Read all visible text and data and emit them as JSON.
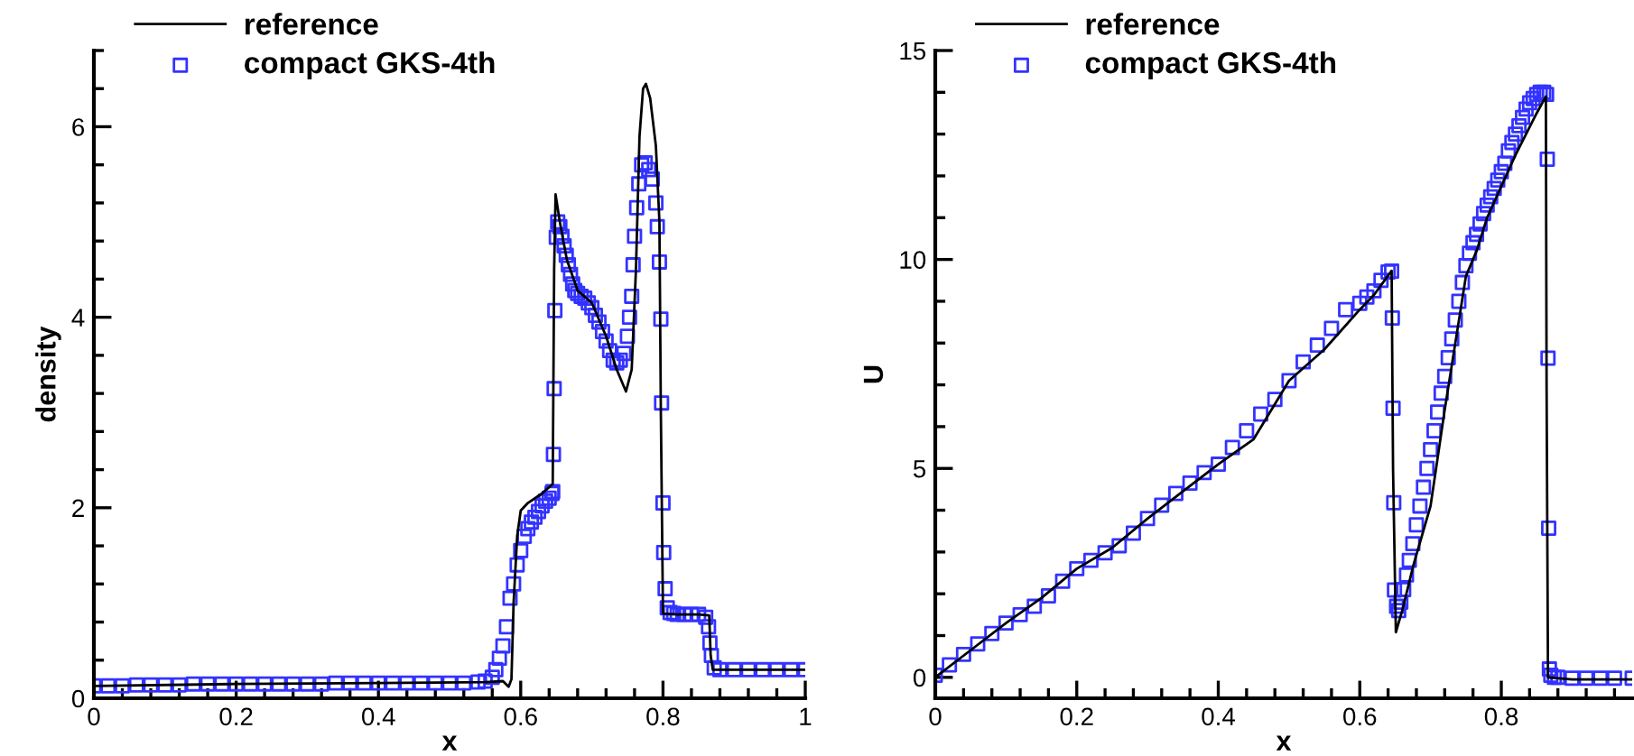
{
  "chart_data": [
    {
      "type": "line",
      "xlabel": "x",
      "ylabel": "density",
      "xlim": [
        0,
        1
      ],
      "ylim": [
        0,
        6.8
      ],
      "xticks": [
        0,
        0.2,
        0.4,
        0.6,
        0.8,
        1
      ],
      "yticks": [
        0,
        2,
        4,
        6
      ],
      "grid": false,
      "legend": "top left",
      "series": [
        {
          "name": "reference",
          "color": "#000000",
          "marker": "none",
          "line_style": "solid",
          "x": [
            0,
            0.2,
            0.4,
            0.55,
            0.575,
            0.583,
            0.587,
            0.59,
            0.595,
            0.6,
            0.61,
            0.63,
            0.645,
            0.647,
            0.649,
            0.655,
            0.665,
            0.68,
            0.7,
            0.72,
            0.735,
            0.748,
            0.756,
            0.762,
            0.767,
            0.772,
            0.776,
            0.782,
            0.79,
            0.795,
            0.797,
            0.8,
            0.82,
            0.85,
            0.865,
            0.867,
            0.87,
            0.9,
            1
          ],
          "values": [
            0.13,
            0.15,
            0.16,
            0.17,
            0.18,
            0.12,
            0.2,
            1.0,
            1.7,
            1.97,
            2.05,
            2.15,
            2.25,
            4.5,
            5.29,
            5.0,
            4.6,
            4.28,
            4.15,
            3.8,
            3.45,
            3.22,
            3.45,
            4.5,
            5.9,
            6.4,
            6.45,
            6.3,
            5.8,
            5.0,
            3.0,
            0.89,
            0.88,
            0.88,
            0.87,
            0.45,
            0.3,
            0.3,
            0.3
          ]
        },
        {
          "name": "compact GKS-4th",
          "type": "scatter",
          "color": "#3333ff",
          "marker": "square",
          "x": [
            0,
            0.02,
            0.04,
            0.06,
            0.08,
            0.1,
            0.12,
            0.14,
            0.16,
            0.18,
            0.2,
            0.22,
            0.24,
            0.26,
            0.28,
            0.3,
            0.32,
            0.34,
            0.36,
            0.38,
            0.4,
            0.42,
            0.44,
            0.46,
            0.48,
            0.5,
            0.52,
            0.54,
            0.55,
            0.56,
            0.565,
            0.57,
            0.575,
            0.58,
            0.585,
            0.59,
            0.595,
            0.6,
            0.605,
            0.61,
            0.615,
            0.62,
            0.625,
            0.63,
            0.635,
            0.64,
            0.644,
            0.645,
            0.646,
            0.647,
            0.648,
            0.65,
            0.652,
            0.655,
            0.658,
            0.661,
            0.664,
            0.667,
            0.67,
            0.673,
            0.676,
            0.68,
            0.685,
            0.69,
            0.695,
            0.7,
            0.705,
            0.71,
            0.715,
            0.72,
            0.725,
            0.73,
            0.735,
            0.74,
            0.745,
            0.75,
            0.753,
            0.756,
            0.758,
            0.76,
            0.763,
            0.766,
            0.77,
            0.775,
            0.78,
            0.785,
            0.79,
            0.792,
            0.795,
            0.797,
            0.798,
            0.8,
            0.801,
            0.803,
            0.806,
            0.81,
            0.815,
            0.82,
            0.83,
            0.84,
            0.85,
            0.86,
            0.864,
            0.866,
            0.868,
            0.872,
            0.88,
            0.9,
            0.92,
            0.94,
            0.96,
            0.98,
            1
          ],
          "values": [
            0.13,
            0.13,
            0.13,
            0.14,
            0.14,
            0.14,
            0.14,
            0.15,
            0.15,
            0.15,
            0.15,
            0.15,
            0.15,
            0.15,
            0.15,
            0.15,
            0.15,
            0.16,
            0.16,
            0.16,
            0.16,
            0.16,
            0.16,
            0.16,
            0.16,
            0.16,
            0.16,
            0.17,
            0.18,
            0.22,
            0.3,
            0.42,
            0.55,
            0.75,
            1.05,
            1.2,
            1.4,
            1.55,
            1.7,
            1.78,
            1.85,
            1.9,
            1.96,
            2.02,
            2.07,
            2.1,
            2.15,
            2.17,
            2.56,
            3.25,
            4.07,
            4.84,
            5.0,
            4.95,
            4.85,
            4.75,
            4.65,
            4.55,
            4.45,
            4.35,
            4.28,
            4.25,
            4.22,
            4.2,
            4.15,
            4.1,
            4.02,
            3.95,
            3.85,
            3.75,
            3.65,
            3.55,
            3.52,
            3.55,
            3.62,
            3.8,
            4.0,
            4.22,
            4.55,
            4.85,
            5.15,
            5.4,
            5.6,
            5.62,
            5.55,
            5.45,
            5.2,
            4.95,
            4.58,
            3.98,
            3.1,
            2.05,
            1.53,
            1.15,
            0.95,
            0.9,
            0.89,
            0.88,
            0.88,
            0.88,
            0.88,
            0.85,
            0.75,
            0.58,
            0.45,
            0.32,
            0.3,
            0.3,
            0.3,
            0.3,
            0.3,
            0.3,
            0.3
          ]
        }
      ]
    },
    {
      "type": "line",
      "xlabel": "x",
      "ylabel": "U",
      "xlim": [
        0,
        0.985
      ],
      "ylim": [
        -0.5,
        15
      ],
      "xticks": [
        0,
        0.2,
        0.4,
        0.6,
        0.8
      ],
      "yticks": [
        0,
        5,
        10,
        15
      ],
      "grid": false,
      "legend": "top left",
      "series": [
        {
          "name": "reference",
          "color": "#000000",
          "marker": "none",
          "line_style": "solid",
          "x": [
            0,
            0.05,
            0.1,
            0.15,
            0.2,
            0.25,
            0.3,
            0.35,
            0.4,
            0.45,
            0.5,
            0.55,
            0.6,
            0.62,
            0.645,
            0.647,
            0.651,
            0.66,
            0.676,
            0.7,
            0.72,
            0.75,
            0.765,
            0.78,
            0.8,
            0.82,
            0.85,
            0.863,
            0.864,
            0.866,
            0.9,
            0.95,
            0.985
          ],
          "values": [
            0,
            0.65,
            1.3,
            1.9,
            2.6,
            3.1,
            3.8,
            4.45,
            5.1,
            5.7,
            7.1,
            7.85,
            8.8,
            9.15,
            9.73,
            5.0,
            1.08,
            1.6,
            2.7,
            4.1,
            6.4,
            9.6,
            10.2,
            11.0,
            11.75,
            12.5,
            13.5,
            13.9,
            7.0,
            0.0,
            -0.05,
            -0.05,
            -0.05
          ]
        },
        {
          "name": "compact GKS-4th",
          "type": "scatter",
          "color": "#3333ff",
          "marker": "square",
          "x": [
            0,
            0.02,
            0.04,
            0.06,
            0.08,
            0.1,
            0.12,
            0.14,
            0.16,
            0.18,
            0.2,
            0.22,
            0.24,
            0.26,
            0.28,
            0.3,
            0.32,
            0.34,
            0.36,
            0.38,
            0.4,
            0.42,
            0.44,
            0.46,
            0.48,
            0.5,
            0.52,
            0.54,
            0.56,
            0.58,
            0.6,
            0.61,
            0.62,
            0.63,
            0.64,
            0.645,
            0.646,
            0.647,
            0.648,
            0.649,
            0.652,
            0.655,
            0.658,
            0.662,
            0.666,
            0.67,
            0.675,
            0.68,
            0.685,
            0.69,
            0.695,
            0.7,
            0.705,
            0.71,
            0.715,
            0.72,
            0.725,
            0.73,
            0.735,
            0.74,
            0.745,
            0.75,
            0.755,
            0.76,
            0.765,
            0.77,
            0.775,
            0.78,
            0.785,
            0.79,
            0.795,
            0.8,
            0.805,
            0.81,
            0.815,
            0.82,
            0.825,
            0.83,
            0.835,
            0.84,
            0.845,
            0.85,
            0.855,
            0.86,
            0.864,
            0.865,
            0.866,
            0.867,
            0.868,
            0.87,
            0.875,
            0.88,
            0.9,
            0.92,
            0.94,
            0.96,
            0.985
          ],
          "values": [
            0.05,
            0.3,
            0.55,
            0.8,
            1.05,
            1.3,
            1.5,
            1.7,
            1.95,
            2.3,
            2.6,
            2.8,
            2.98,
            3.15,
            3.45,
            3.8,
            4.12,
            4.4,
            4.65,
            4.9,
            5.1,
            5.5,
            5.9,
            6.3,
            6.65,
            7.1,
            7.55,
            7.95,
            8.35,
            8.8,
            8.95,
            9.1,
            9.25,
            9.5,
            9.7,
            9.72,
            8.6,
            6.44,
            4.18,
            2.09,
            1.7,
            1.6,
            1.8,
            2.1,
            2.45,
            2.8,
            3.2,
            3.65,
            4.1,
            4.55,
            5.0,
            5.45,
            5.9,
            6.35,
            6.8,
            7.2,
            7.65,
            8.1,
            8.55,
            9.0,
            9.45,
            9.85,
            10.15,
            10.4,
            10.6,
            10.85,
            11.1,
            11.3,
            11.5,
            11.7,
            11.9,
            12.1,
            12.3,
            12.6,
            12.8,
            13.0,
            13.2,
            13.4,
            13.6,
            13.75,
            13.85,
            13.95,
            14.0,
            14.0,
            13.95,
            12.4,
            7.64,
            3.57,
            0.2,
            0.05,
            0.0,
            0.0,
            -0.02,
            -0.02,
            -0.02,
            -0.02,
            -0.02
          ]
        }
      ]
    }
  ]
}
